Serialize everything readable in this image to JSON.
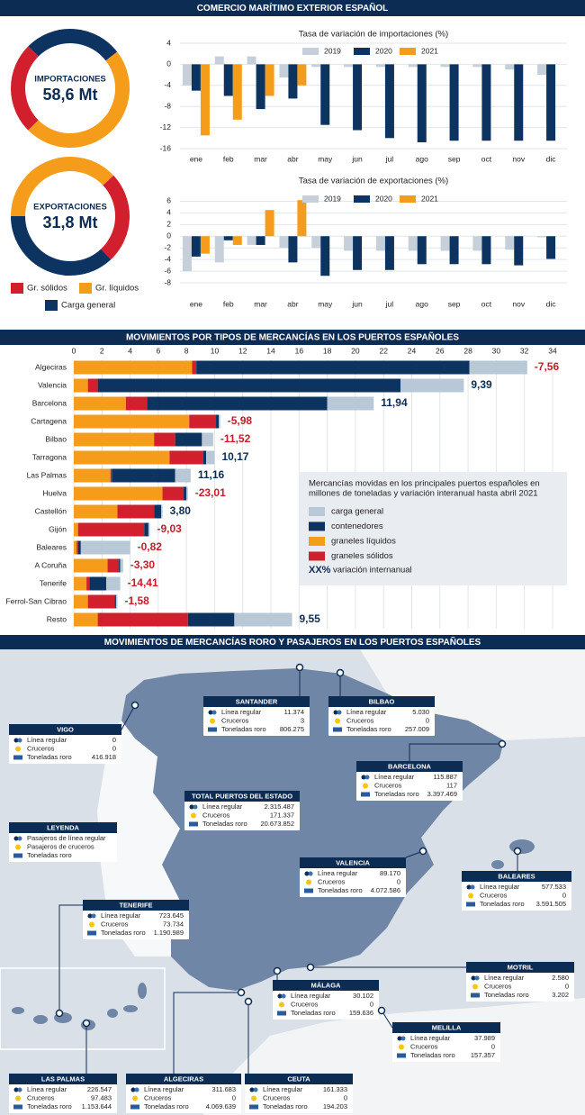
{
  "header": "COMERCIO MARÍTIMO EXTERIOR ESPAÑOL",
  "chart_data": [
    {
      "type": "pie",
      "donut": true,
      "categories": [
        "Gr. sólidos",
        "Gr. líquidos",
        "Carga general"
      ],
      "colors": [
        "#d11f2e",
        "#f59c1a",
        "#0d3461"
      ],
      "series": [
        {
          "name": "IMPORTACIONES",
          "center_label": "58,6 Mt",
          "values": [
            25,
            48,
            27
          ]
        },
        {
          "name": "EXPORTACIONES",
          "center_label": "31,8 Mt",
          "values": [
            25,
            38,
            37
          ]
        }
      ]
    },
    {
      "type": "bar",
      "title": "Tasa de variación de importaciones (%)",
      "categories": [
        "ene",
        "feb",
        "mar",
        "abr",
        "may",
        "jun",
        "jul",
        "ago",
        "sep",
        "oct",
        "nov",
        "dic"
      ],
      "series": [
        {
          "name": "2019",
          "color": "#c5d0db",
          "values": [
            -4,
            1.5,
            1.5,
            -2.5,
            -0.5,
            -0.5,
            -0.5,
            -0.5,
            -0.5,
            -0.5,
            -1,
            -2
          ]
        },
        {
          "name": "2020",
          "color": "#0d3461",
          "values": [
            -5,
            -6,
            -8.5,
            -6.5,
            -11.5,
            -12.5,
            -14,
            -14.8,
            -14.5,
            -14.5,
            -14.5,
            -14.5
          ]
        },
        {
          "name": "2021",
          "color": "#f59c1a",
          "values": [
            -13.5,
            -10.5,
            -6,
            -4,
            null,
            null,
            null,
            null,
            null,
            null,
            null,
            null
          ]
        }
      ],
      "ylim": [
        -16,
        4
      ],
      "yticks": [
        4,
        0,
        -4,
        -8,
        -12,
        -16
      ],
      "grid": true
    },
    {
      "type": "bar",
      "title": "Tasa de variación de exportaciones (%)",
      "categories": [
        "ene",
        "feb",
        "mar",
        "abr",
        "may",
        "jun",
        "jul",
        "ago",
        "sep",
        "oct",
        "nov",
        "dic"
      ],
      "series": [
        {
          "name": "2019",
          "color": "#c5d0db",
          "values": [
            -6,
            -4.5,
            -1.5,
            -2,
            -2,
            -2.5,
            -2.5,
            -2.5,
            -2.5,
            -2.5,
            -2.3,
            -0.2
          ]
        },
        {
          "name": "2020",
          "color": "#0d3461",
          "values": [
            -3.5,
            -0.7,
            -1.5,
            -4.5,
            -6.8,
            -5.8,
            -5.8,
            -4.8,
            -4.8,
            -4.8,
            -5,
            -3.9
          ]
        },
        {
          "name": "2021",
          "color": "#f59c1a",
          "values": [
            -3,
            -1.5,
            4.5,
            6.2,
            null,
            null,
            null,
            null,
            null,
            null,
            null,
            null
          ]
        }
      ],
      "ylim": [
        -8,
        7
      ],
      "yticks": [
        6,
        4,
        2,
        0,
        -2,
        -4,
        -6,
        -8
      ],
      "grid": true
    },
    {
      "type": "bar",
      "orientation": "horizontal",
      "stacked": true,
      "title": "MOVIMIENTOS POR TIPOS DE MERCANCÍAS EN LOS PUERTOS ESPAÑOLES",
      "subtitle": [
        "Mercancías movidas en los principales puertos españoles en",
        "millones de toneladas y variación interanual hasta abril 2021"
      ],
      "categories": [
        "Algeciras",
        "Valencia",
        "Barcelona",
        "Cartagena",
        "Bilbao",
        "Tarragona",
        "Las Palmas",
        "Huelva",
        "Castellón",
        "Gijón",
        "Baleares",
        "A Coruña",
        "Tenerife",
        "Ferrol-San Cibrao",
        "Resto"
      ],
      "series": [
        {
          "name": "carga general",
          "color": "#b9c8d7",
          "values": [
            4.1,
            4.5,
            3.3,
            0.1,
            0.8,
            0.6,
            1.1,
            0.1,
            0.1,
            0.1,
            3.5,
            0.2,
            1.0,
            0.1,
            4.1
          ]
        },
        {
          "name": "contenedores",
          "color": "#0d3461",
          "values": [
            19.4,
            21.5,
            12.8,
            0.2,
            1.9,
            0.2,
            4.5,
            0.2,
            0.5,
            0.3,
            0.2,
            0.1,
            1.2,
            0.1,
            3.3
          ]
        },
        {
          "name": "graneles líquidos",
          "color": "#f59c1a",
          "values": [
            8.4,
            1.0,
            3.7,
            8.2,
            5.7,
            6.8,
            2.6,
            6.3,
            3.1,
            0.3,
            0.2,
            2.4,
            0.9,
            1.0,
            1.7
          ]
        },
        {
          "name": "graneles sólidos",
          "color": "#d11f2e",
          "values": [
            0.3,
            0.7,
            1.5,
            1.9,
            1.5,
            2.4,
            0.1,
            1.5,
            2.6,
            4.7,
            0.1,
            0.8,
            0.2,
            1.9,
            6.4
          ]
        }
      ],
      "variation": {
        "values": [
          -7.56,
          9.39,
          11.94,
          -5.98,
          -11.52,
          10.17,
          11.16,
          -23.01,
          3.8,
          -9.03,
          -0.82,
          -3.3,
          -14.41,
          -1.58,
          9.55
        ],
        "value_labels": [
          "-7,56",
          "9,39",
          "11,94",
          "-5,98",
          "-11,52",
          "10,17",
          "11,16",
          "-23,01",
          "3,80",
          "-9,03",
          "-0,82",
          "-3,30",
          "-14,41",
          "-1,58",
          "9,55"
        ]
      },
      "variation_legend": {
        "label": "XX%",
        "text": "variación internanual"
      },
      "xlim": [
        0,
        35
      ],
      "xticks": [
        0,
        2,
        4,
        6,
        8,
        10,
        12,
        14,
        16,
        18,
        20,
        22,
        24,
        26,
        28,
        30,
        32,
        34
      ],
      "grid": true
    }
  ],
  "map": {
    "title": "MOVIMIENTOS DE MERCANCÍAS RORO Y PASAJEROS EN LOS PUERTOS ESPAÑOLES",
    "row_labels": [
      "Línea regular",
      "Cruceros",
      "Toneladas roro"
    ],
    "legend": {
      "title": "LEYENDA",
      "items": [
        "Pasajeros de línea regular",
        "Pasajeros de cruceros",
        "Toneladas roro"
      ]
    },
    "ports": [
      {
        "name": "SANTANDER",
        "values": [
          "11.374",
          "3",
          "806.275"
        ]
      },
      {
        "name": "BILBAO",
        "values": [
          "5.030",
          "0",
          "257.009"
        ]
      },
      {
        "name": "VIGO",
        "values": [
          "0",
          "0",
          "416.918"
        ]
      },
      {
        "name": "BARCELONA",
        "values": [
          "115.887",
          "117",
          "3.397.469"
        ]
      },
      {
        "name": "TOTAL PUERTOS DEL ESTADO",
        "values": [
          "2.315.487",
          "171.337",
          "20.673.852"
        ]
      },
      {
        "name": "VALENCIA",
        "values": [
          "89.170",
          "0",
          "4.072.586"
        ]
      },
      {
        "name": "BALEARES",
        "values": [
          "577.533",
          "0",
          "3.591.505"
        ]
      },
      {
        "name": "TENERIFE",
        "values": [
          "723.645",
          "73.734",
          "1.190.989"
        ]
      },
      {
        "name": "MOTRIL",
        "values": [
          "2.580",
          "0",
          "3.202"
        ]
      },
      {
        "name": "MÁLAGA",
        "values": [
          "30.102",
          "0",
          "159.636"
        ]
      },
      {
        "name": "MELILLA",
        "values": [
          "37.989",
          "0",
          "157.357"
        ]
      },
      {
        "name": "LAS PALMAS",
        "values": [
          "226.547",
          "97.483",
          "1.153.644"
        ]
      },
      {
        "name": "ALGECIRAS",
        "values": [
          "311.683",
          "0",
          "4.069.639"
        ]
      },
      {
        "name": "CEUTA",
        "values": [
          "161.333",
          "0",
          "194.203"
        ]
      }
    ]
  }
}
